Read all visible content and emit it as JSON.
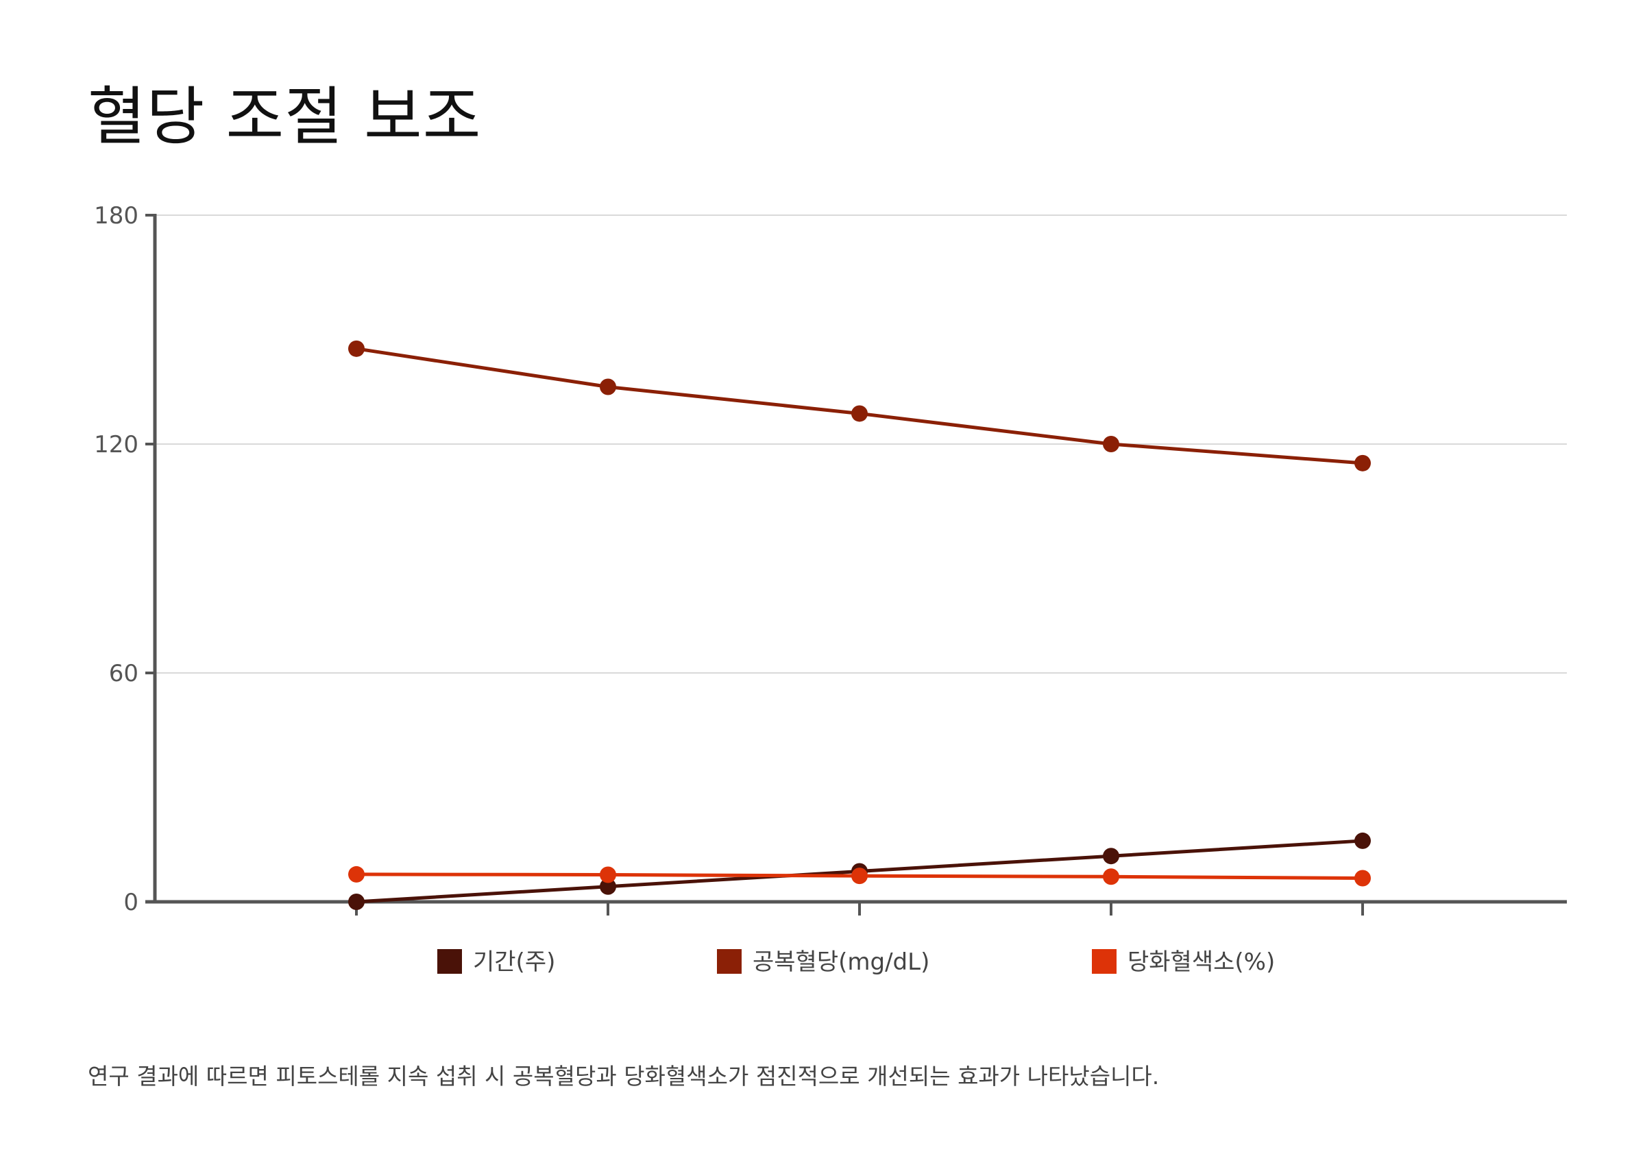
{
  "title": "혈당 조절 보조",
  "caption": "연구 결과에 따르면 피토스테롤 지속 섭취 시 공복혈당과 당화혈색소가 점진적으로 개선되는 효과가 나타났습니다.",
  "colors": {
    "axis": "#555555",
    "grid": "#d9d9d9"
  },
  "chart_data": {
    "type": "line",
    "title": "혈당 조절 보조",
    "x": [
      "",
      "",
      "",
      "",
      ""
    ],
    "ylim": [
      0,
      180
    ],
    "yticks": [
      0,
      60,
      120,
      180
    ],
    "grid": true,
    "legend_position": "bottom",
    "series": [
      {
        "name": "기간(주)",
        "color": "#4a1208",
        "values": [
          0,
          4,
          8,
          12,
          16
        ]
      },
      {
        "name": "공복혈당(mg/dL)",
        "color": "#8b2006",
        "values": [
          145,
          135,
          128,
          120,
          115
        ]
      },
      {
        "name": "당화혈색소(%)",
        "color": "#dd3308",
        "values": [
          7.2,
          7.1,
          6.8,
          6.6,
          6.2
        ]
      }
    ]
  }
}
